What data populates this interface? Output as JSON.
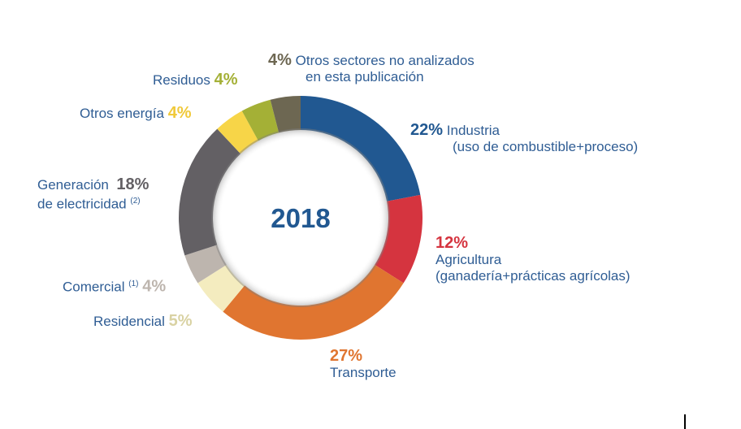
{
  "chart_data": {
    "type": "pie",
    "donut": true,
    "title": "2018",
    "unit": "%",
    "slices": [
      {
        "label": "Industria",
        "sublabel": "(uso de combustible+proceso)",
        "value": 22,
        "pct": "22%",
        "color": "#215891"
      },
      {
        "label": "Agricultura",
        "sublabel": "(ganadería+prácticas agrícolas)",
        "value": 12,
        "pct": "12%",
        "color": "#d5343f"
      },
      {
        "label": "Transporte",
        "value": 27,
        "pct": "27%",
        "color": "#e07530"
      },
      {
        "label": "Residencial",
        "value": 5,
        "pct": "5%",
        "color": "#f4ecbf"
      },
      {
        "label": "Comercial",
        "note": "(1)",
        "value": 4,
        "pct": "4%",
        "color": "#bdb5ae"
      },
      {
        "label": "Generación",
        "sublabel": "de electricidad",
        "note": "(2)",
        "value": 18,
        "pct": "18%",
        "color": "#636064"
      },
      {
        "label": "Otros energía",
        "value": 4,
        "pct": "4%",
        "color": "#f7d548"
      },
      {
        "label": "Residuos",
        "value": 4,
        "pct": "4%",
        "color": "#a4b036"
      },
      {
        "label": "Otros sectores no analizados",
        "sublabel": "en esta publicación",
        "value": 4,
        "pct": "4%",
        "color": "#6d6752"
      }
    ]
  }
}
